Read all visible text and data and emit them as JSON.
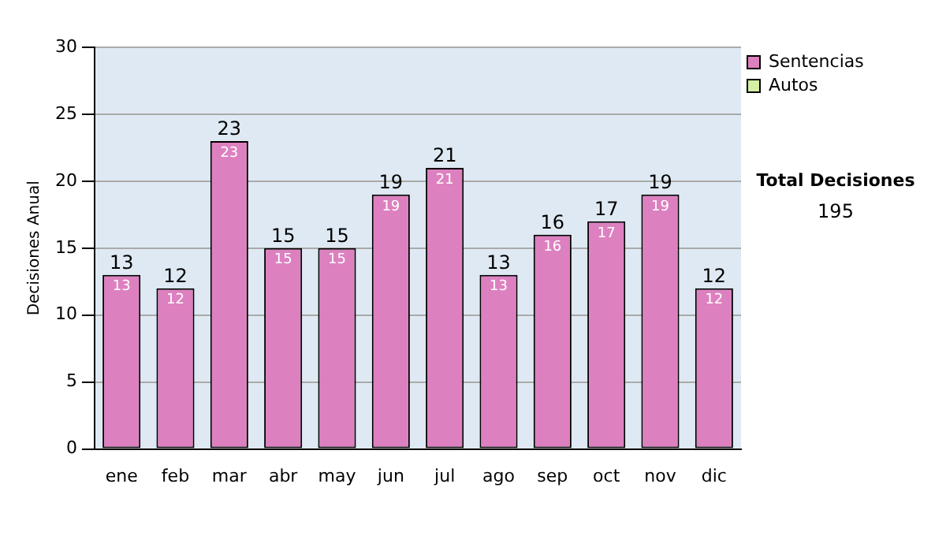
{
  "chart_data": {
    "type": "bar",
    "ylabel": "Decisiones Anual",
    "categories": [
      "ene",
      "feb",
      "mar",
      "abr",
      "may",
      "jun",
      "jul",
      "ago",
      "sep",
      "oct",
      "nov",
      "dic"
    ],
    "series": [
      {
        "name": "Sentencias",
        "color": "#dd80c0",
        "values": [
          13,
          12,
          23,
          15,
          15,
          19,
          21,
          13,
          16,
          17,
          19,
          12
        ],
        "value_labels": [
          "13",
          "12",
          "23",
          "15",
          "15",
          "19",
          "21",
          "13",
          "16",
          "17",
          "19",
          "12"
        ]
      },
      {
        "name": "Autos",
        "color": "#d4eea4",
        "values": [
          0,
          0,
          0,
          0,
          0,
          0,
          0,
          0,
          0,
          0,
          0,
          0
        ]
      }
    ],
    "stacked": true,
    "totals": [
      "13",
      "12",
      "23",
      "15",
      "15",
      "19",
      "21",
      "13",
      "16",
      "17",
      "19",
      "12"
    ],
    "ylim": [
      0,
      30
    ],
    "yticks": [
      0,
      5,
      10,
      15,
      20,
      25,
      30
    ],
    "grid": "y",
    "legend": "right",
    "annotations": [
      "Total Decisiones",
      "195"
    ]
  }
}
